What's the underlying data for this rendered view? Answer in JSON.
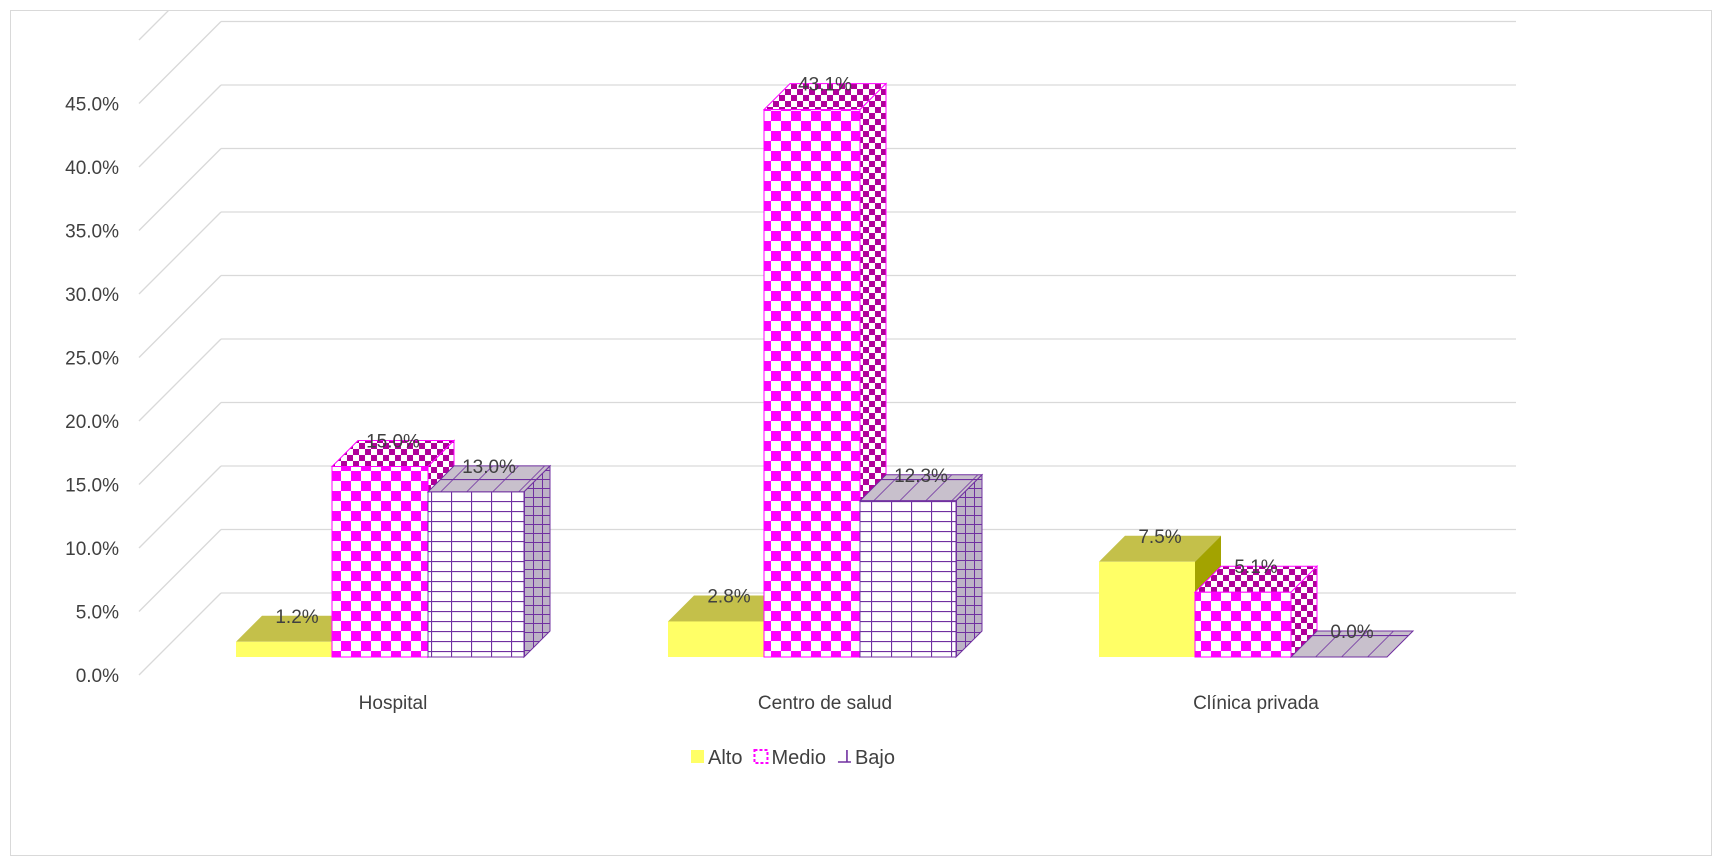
{
  "chart_data": {
    "type": "bar",
    "style": "3d-clustered-column",
    "categories": [
      "Hospital",
      "Centro de salud",
      "Clínica privada"
    ],
    "series": [
      {
        "name": "Alto",
        "values": [
          1.2,
          2.8,
          7.5
        ],
        "labels": [
          "1.2%",
          "2.8%",
          "7.5%"
        ],
        "color": "#ffff66",
        "pattern": "solid"
      },
      {
        "name": "Medio",
        "values": [
          15.0,
          43.1,
          5.1
        ],
        "labels": [
          "15.0%",
          "43.1%",
          "5.1%"
        ],
        "color": "#ff00ff",
        "pattern": "checkerboard"
      },
      {
        "name": "Bajo",
        "values": [
          13.0,
          12.3,
          0.0
        ],
        "labels": [
          "13.0%",
          "12.3%",
          "0.0%"
        ],
        "color": "#7030a0",
        "pattern": "grid"
      }
    ],
    "y_ticks": [
      "0.0%",
      "5.0%",
      "10.0%",
      "15.0%",
      "20.0%",
      "25.0%",
      "30.0%",
      "35.0%",
      "40.0%",
      "45.0%"
    ],
    "ylim": [
      0,
      50
    ],
    "grid": true,
    "legend_position": "bottom",
    "title": "",
    "xlabel": "",
    "ylabel": ""
  }
}
